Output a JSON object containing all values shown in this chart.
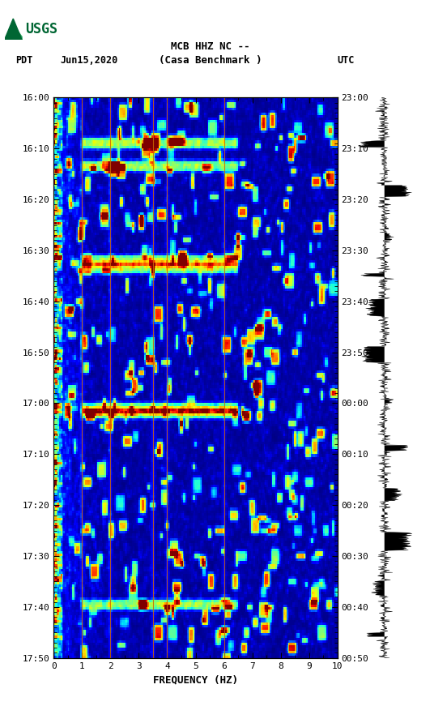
{
  "title_line1": "MCB HHZ NC --",
  "title_line2": "(Casa Benchmark )",
  "left_label": "PDT",
  "date_label": "Jun15,2020",
  "right_label": "UTC",
  "left_times": [
    "16:00",
    "16:10",
    "16:20",
    "16:30",
    "16:40",
    "16:50",
    "17:00",
    "17:10",
    "17:20",
    "17:30",
    "17:40",
    "17:50"
  ],
  "right_times": [
    "23:00",
    "23:10",
    "23:20",
    "23:30",
    "23:40",
    "23:50",
    "00:00",
    "00:10",
    "00:20",
    "00:30",
    "00:40",
    "00:50"
  ],
  "freq_min": 0,
  "freq_max": 10,
  "freq_label": "FREQUENCY (HZ)",
  "freq_ticks": [
    0,
    1,
    2,
    3,
    4,
    5,
    6,
    7,
    8,
    9,
    10
  ],
  "colormap": "jet",
  "background_color": "#ffffff",
  "vline_freqs": [
    1.0,
    2.0,
    3.5,
    4.0,
    6.0
  ],
  "vline_color": "#cc6600",
  "usgs_logo_color": "#006633",
  "n_time_bins": 220,
  "n_freq_bins": 200
}
